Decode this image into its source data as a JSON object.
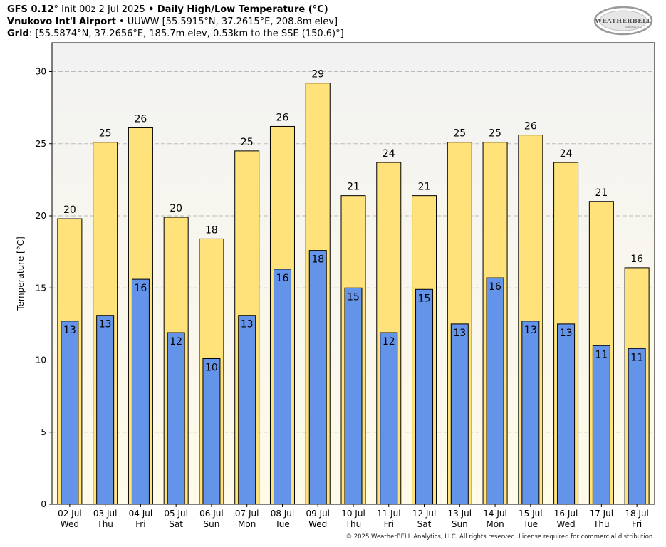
{
  "header": {
    "line1_model": "GFS 0.12",
    "line1_deg": "°",
    "line1_init": " Init 00z 2 Jul 2025 ",
    "line1_bullet": "•",
    "line1_product": " Daily High/Low Temperature (°C)",
    "line2_station": "Vnukovo Int'l Airport",
    "line2_rest": " • UUWW [55.5915°N, 37.2615°E, 208.8m elev]",
    "line3_grid": "Grid",
    "line3_rest": ": [55.5874°N, 37.2656°E, 185.7m elev, 0.53km to the SSE (150.6)°]"
  },
  "logo": {
    "text": "WEATHERBELL",
    "sub": "Analytics LLC"
  },
  "copyright": "© 2025 WeatherBELL Analytics, LLC. All rights reserved. License required for commercial distribution.",
  "colors": {
    "high_bar": "#ffe27a",
    "low_bar": "#6493ea",
    "plot_bg_top": "#f2f2f2",
    "plot_bg_bottom": "#fffbe8",
    "grid": "#bbbbbb"
  },
  "chart_data": {
    "type": "bar",
    "ylabel": "Temperature [°C]",
    "ylim": [
      0,
      32
    ],
    "yticks": [
      0,
      5,
      10,
      15,
      20,
      25,
      30
    ],
    "grid": true,
    "categories": [
      {
        "date": "02 Jul",
        "day": "Wed"
      },
      {
        "date": "03 Jul",
        "day": "Thu"
      },
      {
        "date": "04 Jul",
        "day": "Fri"
      },
      {
        "date": "05 Jul",
        "day": "Sat"
      },
      {
        "date": "06 Jul",
        "day": "Sun"
      },
      {
        "date": "07 Jul",
        "day": "Mon"
      },
      {
        "date": "08 Jul",
        "day": "Tue"
      },
      {
        "date": "09 Jul",
        "day": "Wed"
      },
      {
        "date": "10 Jul",
        "day": "Thu"
      },
      {
        "date": "11 Jul",
        "day": "Fri"
      },
      {
        "date": "12 Jul",
        "day": "Sat"
      },
      {
        "date": "13 Jul",
        "day": "Sun"
      },
      {
        "date": "14 Jul",
        "day": "Mon"
      },
      {
        "date": "15 Jul",
        "day": "Tue"
      },
      {
        "date": "16 Jul",
        "day": "Wed"
      },
      {
        "date": "17 Jul",
        "day": "Thu"
      },
      {
        "date": "18 Jul",
        "day": "Fri"
      }
    ],
    "series": [
      {
        "values": [
          19.8,
          25.1,
          26.1,
          19.9,
          18.4,
          24.5,
          26.2,
          29.2,
          21.4,
          23.7,
          21.4,
          25.1,
          25.1,
          25.6,
          23.7,
          21.0,
          16.4
        ],
        "labels": [
          "20",
          "25",
          "26",
          "20",
          "18",
          "25",
          "26",
          "29",
          "21",
          "24",
          "21",
          "25",
          "25",
          "26",
          "24",
          "21",
          "16"
        ]
      },
      {
        "values": [
          12.7,
          13.1,
          15.6,
          11.9,
          10.1,
          13.1,
          16.3,
          17.6,
          15.0,
          11.9,
          14.9,
          12.5,
          15.7,
          12.7,
          12.5,
          11.0,
          10.8
        ],
        "labels": [
          "13",
          "13",
          "16",
          "12",
          "10",
          "13",
          "16",
          "18",
          "15",
          "12",
          "15",
          "13",
          "16",
          "13",
          "13",
          "11",
          "11"
        ]
      }
    ]
  }
}
